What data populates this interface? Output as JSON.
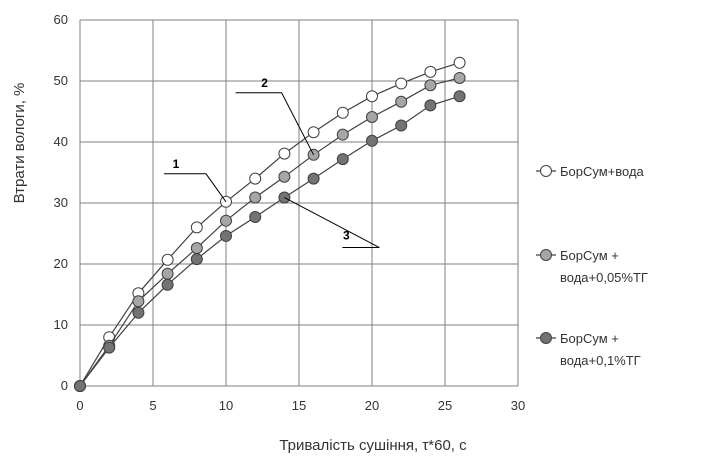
{
  "chart_data": {
    "type": "scatter",
    "xlabel": "Тривалість сушіння, τ*60, с",
    "ylabel": "Втрати вологи, %",
    "xlim": [
      0,
      30
    ],
    "ylim": [
      0,
      60
    ],
    "xticks": [
      0,
      5,
      10,
      15,
      20,
      25,
      30
    ],
    "yticks": [
      0,
      10,
      20,
      30,
      40,
      50,
      60
    ],
    "grid": true,
    "legend_position": "right",
    "series": [
      {
        "legend": [
          "БорСум+вода"
        ],
        "marker_color": "#ffffff",
        "x": [
          0,
          2,
          4,
          6,
          8,
          10,
          12,
          14,
          16,
          18,
          20,
          22,
          24,
          26
        ],
        "y": [
          0,
          8,
          15.2,
          20.7,
          26,
          30.2,
          34,
          38.1,
          41.6,
          44.8,
          47.5,
          49.6,
          51.5,
          53
        ]
      },
      {
        "legend": [
          "БорСум +",
          "вода+0,05%ТГ"
        ],
        "marker_color": "#a6a6a6",
        "x": [
          0,
          2,
          4,
          6,
          8,
          10,
          12,
          14,
          16,
          18,
          20,
          22,
          24,
          26
        ],
        "y": [
          0,
          6.6,
          13.9,
          18.4,
          22.6,
          27.1,
          30.9,
          34.3,
          37.9,
          41.2,
          44.1,
          46.6,
          49.3,
          50.5
        ]
      },
      {
        "legend": [
          "БорСум +",
          "вода+0,1%ТГ"
        ],
        "marker_color": "#737373",
        "x": [
          0,
          2,
          4,
          6,
          8,
          10,
          12,
          14,
          16,
          18,
          20,
          22,
          24,
          26
        ],
        "y": [
          0,
          6.3,
          12,
          16.6,
          20.8,
          24.6,
          27.7,
          30.9,
          34,
          37.2,
          40.2,
          42.7,
          46,
          47.5
        ]
      }
    ],
    "annotations": [
      {
        "label": "1",
        "series": 0,
        "x": 10,
        "y": 30.2
      },
      {
        "label": "2",
        "series": 1,
        "x": 16,
        "y": 37.9
      },
      {
        "label": "3",
        "series": 2,
        "x": 14,
        "y": 30.9
      }
    ]
  }
}
